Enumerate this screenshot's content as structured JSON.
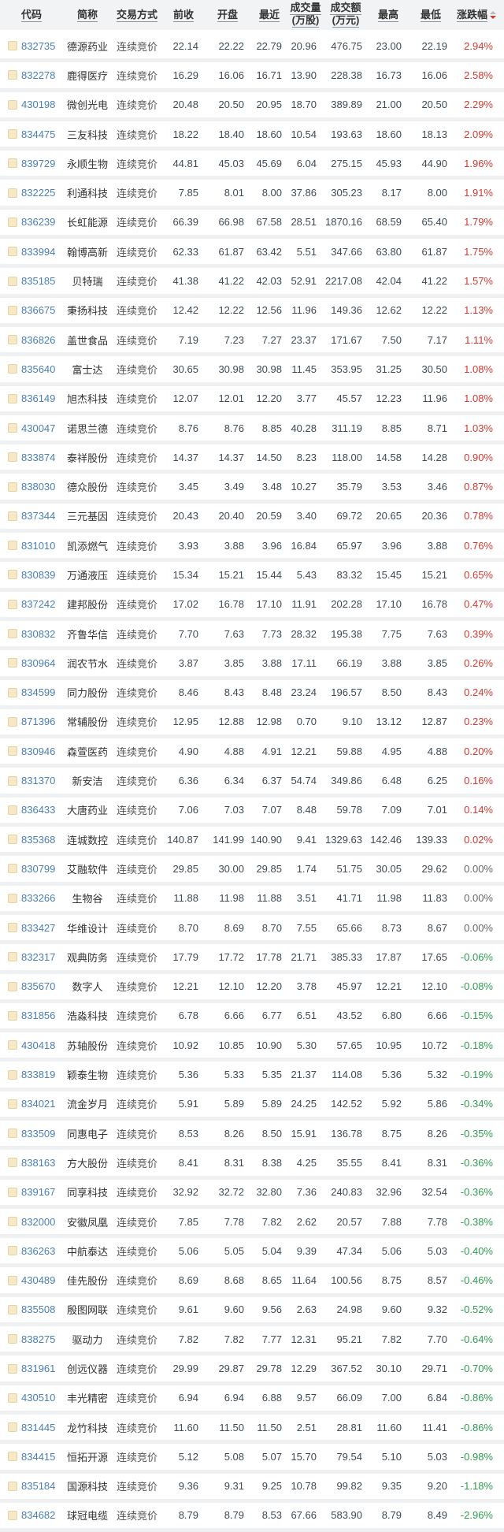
{
  "table": {
    "columns": [
      {
        "label": "代码"
      },
      {
        "label": "简称"
      },
      {
        "label": "交易方式"
      },
      {
        "label": "前收"
      },
      {
        "label": "开盘"
      },
      {
        "label": "最近"
      },
      {
        "label": "成交量",
        "sub": "(万股)"
      },
      {
        "label": "成交额",
        "sub": "(万元)"
      },
      {
        "label": "最高"
      },
      {
        "label": "最低"
      },
      {
        "label": "涨跌幅"
      }
    ],
    "sort": {
      "column": "涨跌幅",
      "direction": "desc"
    },
    "colors": {
      "up": "#d43a32",
      "down": "#2f9e4e",
      "zero": "#666666",
      "code_link": "#4a7fb5"
    },
    "row_fields": [
      "code",
      "name",
      "method",
      "prev_close",
      "open",
      "last",
      "volume_wan_shares",
      "turnover_wan_yuan",
      "high",
      "low",
      "change_pct"
    ],
    "rows": [
      [
        "832735",
        "德源药业",
        "连续竞价",
        "22.14",
        "22.22",
        "22.79",
        "20.96",
        "476.75",
        "23.00",
        "22.19",
        "2.94%"
      ],
      [
        "832278",
        "鹿得医疗",
        "连续竞价",
        "16.29",
        "16.06",
        "16.71",
        "13.90",
        "228.38",
        "16.73",
        "16.06",
        "2.58%"
      ],
      [
        "430198",
        "微创光电",
        "连续竞价",
        "20.48",
        "20.50",
        "20.95",
        "18.70",
        "389.89",
        "21.00",
        "20.50",
        "2.29%"
      ],
      [
        "834475",
        "三友科技",
        "连续竞价",
        "18.22",
        "18.40",
        "18.60",
        "10.54",
        "193.63",
        "18.60",
        "18.13",
        "2.09%"
      ],
      [
        "839729",
        "永顺生物",
        "连续竞价",
        "44.81",
        "45.03",
        "45.69",
        "6.04",
        "275.15",
        "45.93",
        "44.90",
        "1.96%"
      ],
      [
        "832225",
        "利通科技",
        "连续竞价",
        "7.85",
        "8.01",
        "8.00",
        "37.86",
        "305.23",
        "8.17",
        "8.00",
        "1.91%"
      ],
      [
        "836239",
        "长虹能源",
        "连续竞价",
        "66.39",
        "66.98",
        "67.58",
        "28.51",
        "1870.16",
        "68.59",
        "65.40",
        "1.79%"
      ],
      [
        "833994",
        "翰博高新",
        "连续竞价",
        "62.33",
        "61.87",
        "63.42",
        "5.51",
        "347.66",
        "63.80",
        "61.87",
        "1.75%"
      ],
      [
        "835185",
        "贝特瑞",
        "连续竞价",
        "41.38",
        "41.22",
        "42.03",
        "52.91",
        "2217.08",
        "42.04",
        "41.22",
        "1.57%"
      ],
      [
        "836675",
        "秉扬科技",
        "连续竞价",
        "12.42",
        "12.22",
        "12.56",
        "11.96",
        "149.36",
        "12.62",
        "12.22",
        "1.13%"
      ],
      [
        "836826",
        "盖世食品",
        "连续竞价",
        "7.19",
        "7.23",
        "7.27",
        "23.37",
        "171.67",
        "7.50",
        "7.17",
        "1.11%"
      ],
      [
        "835640",
        "富士达",
        "连续竞价",
        "30.65",
        "30.98",
        "30.98",
        "11.45",
        "353.95",
        "31.25",
        "30.50",
        "1.08%"
      ],
      [
        "836149",
        "旭杰科技",
        "连续竞价",
        "12.07",
        "12.01",
        "12.20",
        "3.77",
        "45.57",
        "12.23",
        "11.96",
        "1.08%"
      ],
      [
        "430047",
        "诺思兰德",
        "连续竞价",
        "8.76",
        "8.76",
        "8.85",
        "40.28",
        "311.19",
        "8.85",
        "8.71",
        "1.03%"
      ],
      [
        "833874",
        "泰祥股份",
        "连续竞价",
        "14.37",
        "14.37",
        "14.50",
        "8.23",
        "118.00",
        "14.58",
        "14.28",
        "0.90%"
      ],
      [
        "838030",
        "德众股份",
        "连续竞价",
        "3.45",
        "3.49",
        "3.48",
        "10.27",
        "35.79",
        "3.53",
        "3.46",
        "0.87%"
      ],
      [
        "837344",
        "三元基因",
        "连续竞价",
        "20.43",
        "20.40",
        "20.59",
        "3.40",
        "69.72",
        "20.65",
        "20.36",
        "0.78%"
      ],
      [
        "831010",
        "凯添燃气",
        "连续竞价",
        "3.93",
        "3.88",
        "3.96",
        "16.84",
        "65.97",
        "3.96",
        "3.88",
        "0.76%"
      ],
      [
        "830839",
        "万通液压",
        "连续竞价",
        "15.34",
        "15.21",
        "15.44",
        "5.43",
        "83.32",
        "15.45",
        "15.21",
        "0.65%"
      ],
      [
        "837242",
        "建邦股份",
        "连续竞价",
        "17.02",
        "16.78",
        "17.10",
        "11.91",
        "202.28",
        "17.10",
        "16.78",
        "0.47%"
      ],
      [
        "830832",
        "齐鲁华信",
        "连续竞价",
        "7.70",
        "7.63",
        "7.73",
        "28.32",
        "195.38",
        "7.75",
        "7.63",
        "0.39%"
      ],
      [
        "830964",
        "润农节水",
        "连续竞价",
        "3.87",
        "3.85",
        "3.88",
        "17.11",
        "66.19",
        "3.88",
        "3.85",
        "0.26%"
      ],
      [
        "834599",
        "同力股份",
        "连续竞价",
        "8.46",
        "8.43",
        "8.48",
        "23.24",
        "196.57",
        "8.50",
        "8.43",
        "0.24%"
      ],
      [
        "871396",
        "常辅股份",
        "连续竞价",
        "12.95",
        "12.88",
        "12.98",
        "0.70",
        "9.10",
        "13.12",
        "12.87",
        "0.23%"
      ],
      [
        "830946",
        "森萱医药",
        "连续竞价",
        "4.90",
        "4.88",
        "4.91",
        "12.21",
        "59.88",
        "4.95",
        "4.88",
        "0.20%"
      ],
      [
        "831370",
        "新安洁",
        "连续竞价",
        "6.36",
        "6.34",
        "6.37",
        "54.74",
        "349.86",
        "6.48",
        "6.25",
        "0.16%"
      ],
      [
        "836433",
        "大唐药业",
        "连续竞价",
        "7.06",
        "7.03",
        "7.07",
        "8.48",
        "59.78",
        "7.09",
        "7.01",
        "0.14%"
      ],
      [
        "835368",
        "连城数控",
        "连续竞价",
        "140.87",
        "141.99",
        "140.90",
        "9.41",
        "1329.63",
        "142.46",
        "139.33",
        "0.02%"
      ],
      [
        "830799",
        "艾融软件",
        "连续竞价",
        "29.85",
        "30.00",
        "29.85",
        "1.74",
        "51.75",
        "30.05",
        "29.62",
        "0.00%"
      ],
      [
        "833266",
        "生物谷",
        "连续竞价",
        "11.88",
        "11.98",
        "11.88",
        "3.51",
        "41.71",
        "11.98",
        "11.83",
        "0.00%"
      ],
      [
        "833427",
        "华维设计",
        "连续竞价",
        "8.70",
        "8.69",
        "8.70",
        "7.55",
        "65.66",
        "8.73",
        "8.67",
        "0.00%"
      ],
      [
        "832317",
        "观典防务",
        "连续竞价",
        "17.79",
        "17.72",
        "17.78",
        "21.71",
        "385.33",
        "17.87",
        "17.65",
        "-0.06%"
      ],
      [
        "835670",
        "数字人",
        "连续竞价",
        "12.21",
        "12.10",
        "12.20",
        "3.78",
        "45.97",
        "12.21",
        "12.10",
        "-0.08%"
      ],
      [
        "831856",
        "浩淼科技",
        "连续竞价",
        "6.78",
        "6.66",
        "6.77",
        "6.51",
        "43.52",
        "6.80",
        "6.66",
        "-0.15%"
      ],
      [
        "430418",
        "苏轴股份",
        "连续竞价",
        "10.92",
        "10.85",
        "10.90",
        "5.30",
        "57.65",
        "10.95",
        "10.72",
        "-0.18%"
      ],
      [
        "833819",
        "颖泰生物",
        "连续竞价",
        "5.36",
        "5.33",
        "5.35",
        "21.37",
        "114.08",
        "5.36",
        "5.32",
        "-0.19%"
      ],
      [
        "834021",
        "流金岁月",
        "连续竞价",
        "5.91",
        "5.89",
        "5.89",
        "24.25",
        "142.52",
        "5.92",
        "5.86",
        "-0.34%"
      ],
      [
        "833509",
        "同惠电子",
        "连续竞价",
        "8.53",
        "8.26",
        "8.50",
        "15.91",
        "136.78",
        "8.75",
        "8.26",
        "-0.35%"
      ],
      [
        "838163",
        "方大股份",
        "连续竞价",
        "8.41",
        "8.31",
        "8.38",
        "4.25",
        "35.55",
        "8.41",
        "8.31",
        "-0.36%"
      ],
      [
        "839167",
        "同享科技",
        "连续竞价",
        "32.92",
        "32.72",
        "32.80",
        "7.36",
        "240.83",
        "32.96",
        "32.54",
        "-0.36%"
      ],
      [
        "832000",
        "安徽凤凰",
        "连续竞价",
        "7.85",
        "7.78",
        "7.82",
        "2.62",
        "20.57",
        "7.88",
        "7.78",
        "-0.38%"
      ],
      [
        "836263",
        "中航泰达",
        "连续竞价",
        "5.06",
        "5.05",
        "5.04",
        "9.39",
        "47.34",
        "5.06",
        "5.03",
        "-0.40%"
      ],
      [
        "430489",
        "佳先股份",
        "连续竞价",
        "8.69",
        "8.68",
        "8.65",
        "11.64",
        "100.56",
        "8.75",
        "8.57",
        "-0.46%"
      ],
      [
        "835508",
        "殷图网联",
        "连续竞价",
        "9.61",
        "9.60",
        "9.56",
        "2.63",
        "24.98",
        "9.60",
        "9.32",
        "-0.52%"
      ],
      [
        "838275",
        "驱动力",
        "连续竞价",
        "7.82",
        "7.82",
        "7.77",
        "12.31",
        "95.21",
        "7.82",
        "7.70",
        "-0.64%"
      ],
      [
        "831961",
        "创远仪器",
        "连续竞价",
        "29.99",
        "29.87",
        "29.78",
        "12.29",
        "367.52",
        "30.10",
        "29.71",
        "-0.70%"
      ],
      [
        "430510",
        "丰光精密",
        "连续竞价",
        "6.94",
        "6.94",
        "6.88",
        "9.57",
        "66.09",
        "7.00",
        "6.84",
        "-0.86%"
      ],
      [
        "831445",
        "龙竹科技",
        "连续竞价",
        "11.60",
        "11.50",
        "11.50",
        "2.51",
        "28.81",
        "11.60",
        "11.41",
        "-0.86%"
      ],
      [
        "834415",
        "恒拓开源",
        "连续竞价",
        "5.12",
        "5.08",
        "5.07",
        "15.70",
        "79.54",
        "5.10",
        "5.03",
        "-0.98%"
      ],
      [
        "835184",
        "国源科技",
        "连续竞价",
        "9.36",
        "9.31",
        "9.25",
        "10.78",
        "99.82",
        "9.35",
        "9.20",
        "-1.18%"
      ],
      [
        "834682",
        "球冠电缆",
        "连续竞价",
        "8.79",
        "8.79",
        "8.53",
        "67.66",
        "583.90",
        "8.79",
        "8.49",
        "-2.96%"
      ]
    ]
  }
}
